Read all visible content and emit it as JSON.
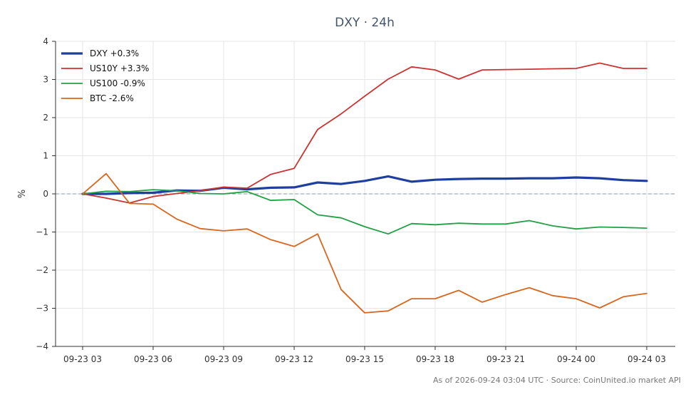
{
  "footer": "As of 2026-09-24 03:04 UTC · Source: CoinUnited.io market API",
  "colors": {
    "background": "#ffffff",
    "grid": "#e6e6e6",
    "zero_line": "#7f97ab",
    "axis": "#333333"
  },
  "chart_data": {
    "type": "line",
    "title": "DXY · 24h",
    "xlabel": "",
    "ylabel": "%",
    "ylim": [
      -4,
      4
    ],
    "yticks": [
      4,
      3,
      2,
      1,
      0,
      -1,
      -2,
      -3,
      -4
    ],
    "ytick_labels": [
      "4",
      "3",
      "2",
      "1",
      "0",
      "−1",
      "−2",
      "−3",
      "−4"
    ],
    "x": [
      "09-23 03:00",
      "09-23 04:00",
      "09-23 05:00",
      "09-23 06:00",
      "09-23 07:00",
      "09-23 08:00",
      "09-23 09:00",
      "09-23 10:00",
      "09-23 11:00",
      "09-23 12:00",
      "09-23 13:00",
      "09-23 14:00",
      "09-23 15:00",
      "09-23 16:00",
      "09-23 17:00",
      "09-23 18:00",
      "09-23 19:00",
      "09-23 20:00",
      "09-23 21:00",
      "09-23 22:00",
      "09-23 23:00",
      "09-24 00:00",
      "09-24 01:00",
      "09-24 02:00",
      "09-24 03:00"
    ],
    "xtick_labels": [
      "09-23 03",
      "09-23 06",
      "09-23 09",
      "09-23 12",
      "09-23 15",
      "09-23 18",
      "09-23 21",
      "09-24 00",
      "09-24 03"
    ],
    "xtick_index": [
      0,
      3,
      6,
      9,
      12,
      15,
      18,
      21,
      24
    ],
    "grid": true,
    "legend_position": "top-left",
    "zero_line": true,
    "series": [
      {
        "name": "DXY +0.3%",
        "color": "#1f3f9f",
        "line_width": 3.2,
        "values": [
          0.0,
          0.0,
          0.02,
          0.03,
          0.09,
          0.08,
          0.16,
          0.12,
          0.16,
          0.17,
          0.3,
          0.26,
          0.34,
          0.46,
          0.32,
          0.37,
          0.39,
          0.4,
          0.4,
          0.41,
          0.41,
          0.43,
          0.41,
          0.36,
          0.34
        ]
      },
      {
        "name": "US10Y +3.3%",
        "color": "#cc3333",
        "line_width": 1.8,
        "values": [
          0.0,
          -0.11,
          -0.24,
          -0.07,
          0.01,
          0.08,
          0.18,
          0.15,
          0.51,
          0.67,
          1.69,
          2.1,
          2.56,
          3.01,
          3.33,
          3.25,
          3.01,
          3.25,
          3.26,
          3.27,
          3.28,
          3.29,
          3.43,
          3.29,
          3.29
        ]
      },
      {
        "name": "US100 -0.9%",
        "color": "#22a045",
        "line_width": 1.8,
        "values": [
          0.0,
          0.07,
          0.06,
          0.11,
          0.08,
          0.01,
          0.0,
          0.06,
          -0.17,
          -0.15,
          -0.55,
          -0.63,
          -0.86,
          -1.05,
          -0.78,
          -0.81,
          -0.77,
          -0.79,
          -0.79,
          -0.7,
          -0.84,
          -0.92,
          -0.87,
          -0.88,
          -0.9
        ]
      },
      {
        "name": "BTC -2.6%",
        "color": "#d8661e",
        "line_width": 1.8,
        "values": [
          0.0,
          0.53,
          -0.25,
          -0.27,
          -0.66,
          -0.91,
          -0.97,
          -0.92,
          -1.2,
          -1.38,
          -1.05,
          -2.51,
          -3.12,
          -3.07,
          -2.75,
          -2.75,
          -2.53,
          -2.84,
          -2.64,
          -2.46,
          -2.67,
          -2.75,
          -2.99,
          -2.7,
          -2.61
        ]
      }
    ]
  }
}
